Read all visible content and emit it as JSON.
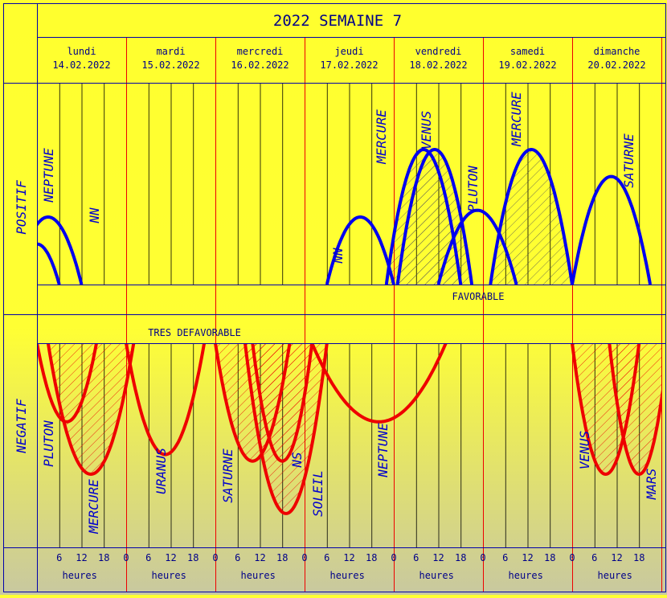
{
  "title": "2022 SEMAINE 7",
  "days": [
    {
      "name": "lundi",
      "date": "14.02.2022"
    },
    {
      "name": "mardi",
      "date": "15.02.2022"
    },
    {
      "name": "mercredi",
      "date": "16.02.2022"
    },
    {
      "name": "jeudi",
      "date": "17.02.2022"
    },
    {
      "name": "vendredi",
      "date": "18.02.2022"
    },
    {
      "name": "samedi",
      "date": "19.02.2022"
    },
    {
      "name": "dimanche",
      "date": "20.02.2022"
    }
  ],
  "section_labels": {
    "positive": "POSITIF",
    "negative": "NEGATIF"
  },
  "band_labels": {
    "favorable": "FAVORABLE",
    "defavorable": "TRES DEFAVORABLE"
  },
  "hour_ticks": [
    "0",
    "6",
    "12",
    "18"
  ],
  "axis_unit": "heures",
  "colors": {
    "background": "#ffff33",
    "frame": "#0000aa",
    "positive": "#0000ee",
    "negative": "#ee0000",
    "gridline": "#000000"
  },
  "chart_data": {
    "type": "line",
    "x_unit": "hours since Monday 14.02.2022 00:00",
    "xlim": [
      0,
      168
    ],
    "ylim_positive": [
      0,
      10
    ],
    "ylim_negative": [
      0,
      -10
    ],
    "positive_series": [
      {
        "name": "NEPTUNE",
        "start": -6,
        "end": 12,
        "peak": 5
      },
      {
        "name": "NN",
        "start": -6,
        "end": 6,
        "peak": 3
      },
      {
        "name": "NN",
        "start": 78,
        "end": 96,
        "peak": 5
      },
      {
        "name": "MERCURE",
        "start": 94,
        "end": 114,
        "peak": 10
      },
      {
        "name": "VENUS",
        "start": 97,
        "end": 117,
        "peak": 10
      },
      {
        "name": "PLUTON",
        "start": 108,
        "end": 129,
        "peak": 5.5
      },
      {
        "name": "MERCURE",
        "start": 122,
        "end": 144,
        "peak": 10
      },
      {
        "name": "SATURNE",
        "start": 144,
        "end": 165,
        "peak": 8
      }
    ],
    "negative_series": [
      {
        "name": "PLUTON",
        "start": 0,
        "end": 16,
        "peak": -6
      },
      {
        "name": "MERCURE",
        "start": 3,
        "end": 26,
        "peak": -10
      },
      {
        "name": "URANUS",
        "start": 24,
        "end": 45,
        "peak": -8.5
      },
      {
        "name": "SATURNE",
        "start": 48,
        "end": 68,
        "peak": -9
      },
      {
        "name": "NS",
        "start": 58,
        "end": 74,
        "peak": -9
      },
      {
        "name": "SOLEIL",
        "start": 56,
        "end": 78,
        "peak": -13
      },
      {
        "name": "NEPTUNE",
        "start": 74,
        "end": 110,
        "peak": -6
      },
      {
        "name": "VENUS",
        "start": 144,
        "end": 162,
        "peak": -10
      },
      {
        "name": "MARS",
        "start": 154,
        "end": 170,
        "peak": -10
      }
    ]
  }
}
